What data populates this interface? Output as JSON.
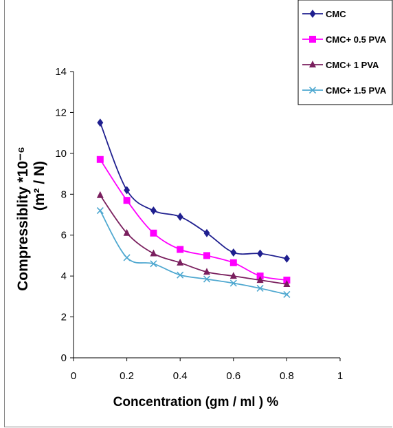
{
  "chart_data": {
    "type": "line",
    "title": "",
    "xlabel": "Concentration (gm / ml ) %",
    "ylabel_line1": "Compressiblity *10⁻⁶",
    "ylabel_line2": "(m² / N)",
    "xlim": [
      0,
      1
    ],
    "ylim": [
      0,
      14
    ],
    "x_ticks": [
      "0",
      "0.2",
      "0.4",
      "0.6",
      "0.8",
      "1"
    ],
    "y_ticks": [
      "0",
      "2",
      "4",
      "6",
      "8",
      "10",
      "12",
      "14"
    ],
    "grid": false,
    "legend_position": "top-right",
    "x": [
      0.1,
      0.2,
      0.3,
      0.4,
      0.5,
      0.6,
      0.7,
      0.8
    ],
    "series": [
      {
        "name": "CMC",
        "color": "#1f1f8f",
        "marker": "diamond",
        "values": [
          11.5,
          8.2,
          7.2,
          6.9,
          6.1,
          5.15,
          5.1,
          4.85
        ]
      },
      {
        "name": "CMC+ 0.5 PVA",
        "color": "#ff00ff",
        "marker": "square",
        "values": [
          9.7,
          7.7,
          6.1,
          5.3,
          5.0,
          4.65,
          4.0,
          3.8
        ]
      },
      {
        "name": "CMC+ 1 PVA",
        "color": "#7a1f5e",
        "marker": "triangle",
        "values": [
          7.95,
          6.1,
          5.1,
          4.65,
          4.2,
          4.0,
          3.8,
          3.6
        ]
      },
      {
        "name": "CMC+ 1.5 PVA",
        "color": "#4fa8d0",
        "marker": "x",
        "values": [
          7.2,
          4.9,
          4.6,
          4.05,
          3.85,
          3.65,
          3.4,
          3.1
        ]
      }
    ]
  }
}
